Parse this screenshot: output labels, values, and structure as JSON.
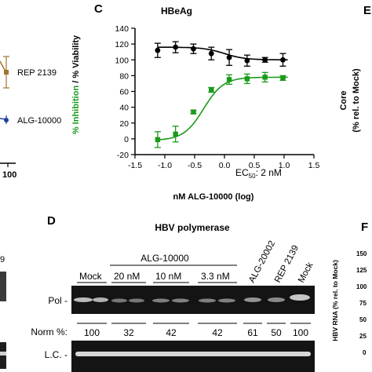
{
  "panels": {
    "C": {
      "letter": "C"
    },
    "D": {
      "letter": "D"
    },
    "E": {
      "letter": "E"
    },
    "F": {
      "letter": "F"
    }
  },
  "chart_data": [
    {
      "panel": "C",
      "type": "scatter",
      "title": "HBeAg",
      "xlabel": "nM ALG-10000 (log)",
      "ylabel_part1": "% Inhibition",
      "ylabel_part2": " / % Viability",
      "xlim": [
        -1.5,
        1.5
      ],
      "ylim": [
        -20,
        140
      ],
      "xticks": [
        -1.5,
        -1.0,
        -0.5,
        0.0,
        0.5,
        1.0,
        1.5
      ],
      "yticks": [
        -20,
        0,
        20,
        40,
        60,
        80,
        100,
        120,
        140
      ],
      "annotation": "EC50: 2 nM",
      "annotation_main": "EC",
      "annotation_sub": "50",
      "annotation_tail": ": 2 nM",
      "series": [
        {
          "role": "viability",
          "color": "#000000",
          "marker": "circle",
          "x": [
            -1.12,
            -0.82,
            -0.52,
            -0.22,
            0.08,
            0.38,
            0.68,
            0.98
          ],
          "y": [
            112,
            116,
            114,
            108,
            103,
            99,
            100,
            100
          ],
          "err": [
            9,
            7,
            6,
            8,
            10,
            7,
            3,
            8
          ]
        },
        {
          "role": "inhibition",
          "color": "#1a9a1a",
          "marker": "square",
          "x": [
            -1.12,
            -0.82,
            -0.52,
            -0.22,
            0.08,
            0.38,
            0.68,
            0.98
          ],
          "y": [
            -1,
            6,
            34,
            62,
            75,
            76,
            78,
            77
          ],
          "err": [
            10,
            10,
            2,
            3,
            6,
            6,
            6,
            3
          ]
        }
      ]
    },
    {
      "panel": "B_partial",
      "type": "line",
      "legend": [
        {
          "name": "REP 2139",
          "color": "#a0742a"
        },
        {
          "name": "ALG-10000",
          "color": "#1f3fa0"
        }
      ],
      "x_tick_fragment": "100"
    }
  ],
  "blot": {
    "title": "HBV polymerase",
    "group_label": "ALG-10000",
    "lanes": [
      "Mock",
      "20 nM",
      "10 nM",
      "3.3 nM",
      "ALG-20002",
      "REP 2139",
      "Mock"
    ],
    "row_label_pol": "Pol -",
    "row_label_lc": "L.C. -",
    "norm_label": "Norm %:",
    "norm_values": [
      "100",
      "32",
      "42",
      "42",
      "61",
      "50",
      "100"
    ],
    "left_fragment": "9"
  },
  "panel_E": {
    "ylabel_1": "Core",
    "ylabel_2": "(% rel. to Mock)"
  },
  "panel_F": {
    "ylabel": "HBV RNA (% rel. to Mock)",
    "ticks": [
      "150",
      "125",
      "100",
      "75",
      "50",
      "25",
      "0"
    ]
  }
}
